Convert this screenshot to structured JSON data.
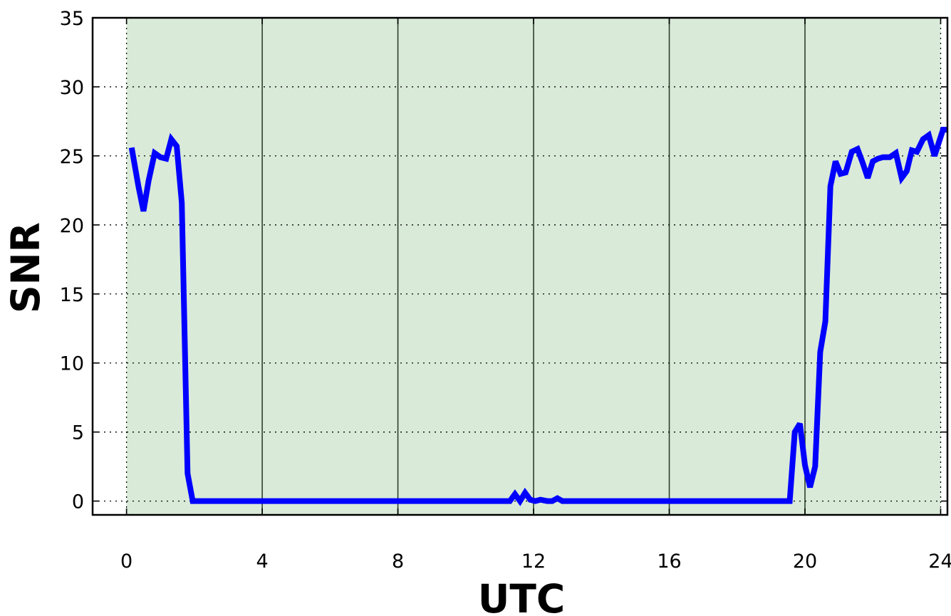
{
  "chart_data": {
    "type": "line",
    "title": "",
    "xlabel": "UTC",
    "ylabel": "SNR",
    "xlim": [
      -1,
      24.2
    ],
    "ylim": [
      -1,
      35
    ],
    "x_ticks": [
      0,
      4,
      8,
      12,
      16,
      20,
      24
    ],
    "x_tick_labels": [
      "0",
      "4",
      "8",
      "12",
      "16",
      "20",
      "24"
    ],
    "y_ticks": [
      0,
      5,
      10,
      15,
      20,
      25,
      30,
      35
    ],
    "y_tick_labels": [
      "0",
      "5",
      "10",
      "15",
      "20",
      "25",
      "30",
      "35"
    ],
    "grid": true,
    "shaded_region": {
      "x_start": 0,
      "x_end": 24,
      "color": "#d9ead9"
    },
    "series": [
      {
        "color": "#0000ff",
        "x": [
          0.15,
          0.35,
          0.5,
          0.65,
          0.83,
          1.0,
          1.17,
          1.32,
          1.48,
          1.63,
          1.8,
          1.95,
          2.1,
          11.3,
          11.45,
          11.6,
          11.75,
          11.9,
          12.05,
          12.2,
          12.4,
          12.55,
          12.7,
          12.85,
          19.55,
          19.7,
          19.85,
          20.0,
          20.15,
          20.3,
          20.45,
          20.6,
          20.75,
          20.9,
          21.05,
          21.2,
          21.38,
          21.55,
          21.7,
          21.85,
          22.0,
          22.15,
          22.3,
          22.5,
          22.68,
          22.85,
          23.0,
          23.15,
          23.3,
          23.48,
          23.65,
          23.82,
          23.95,
          24.07,
          24.2
        ],
        "y": [
          25.6,
          22.8,
          21.0,
          23.2,
          25.2,
          24.9,
          24.8,
          26.2,
          25.7,
          21.6,
          2.0,
          0.0,
          0.0,
          0.0,
          0.5,
          0.0,
          0.6,
          0.1,
          0.0,
          0.1,
          0.0,
          0.0,
          0.2,
          0.0,
          0.0,
          5.0,
          5.6,
          2.6,
          1.0,
          2.5,
          10.8,
          13.0,
          22.8,
          24.6,
          23.7,
          23.8,
          25.3,
          25.5,
          24.5,
          23.4,
          24.6,
          24.8,
          24.9,
          24.9,
          25.2,
          23.4,
          23.9,
          25.4,
          25.3,
          26.2,
          26.5,
          25.0,
          26.0,
          26.9,
          26.9
        ]
      }
    ]
  }
}
